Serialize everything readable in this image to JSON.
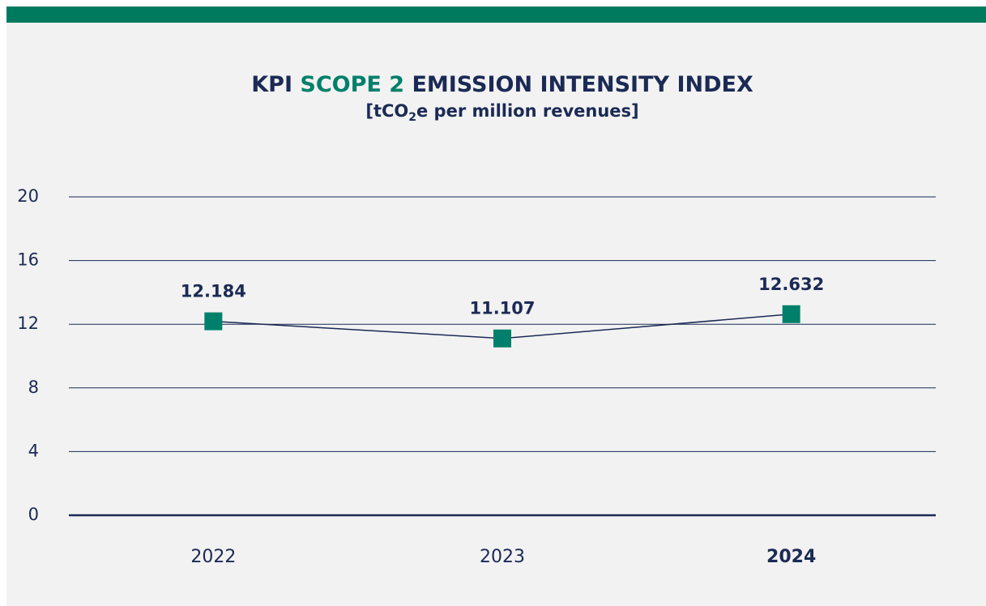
{
  "chart_data": {
    "type": "line",
    "title_parts": [
      "KPI ",
      "SCOPE 2",
      " EMISSION INTENSITY INDEX"
    ],
    "title_colors": [
      "#1b2a55",
      "#00806a",
      "#1b2a55"
    ],
    "subtitle_parts": [
      "[tCO",
      "2",
      "e per million revenues]"
    ],
    "categories": [
      "2022",
      "2023",
      "2024"
    ],
    "category_bold": [
      false,
      false,
      true
    ],
    "series": [
      {
        "color": "#00806a",
        "line_color": "#1b2a55",
        "values": [
          12.184,
          11.107,
          12.632
        ]
      }
    ],
    "ylim": [
      0,
      20
    ],
    "yticks": [
      0,
      4,
      8,
      12,
      16,
      20
    ],
    "grid": true
  }
}
